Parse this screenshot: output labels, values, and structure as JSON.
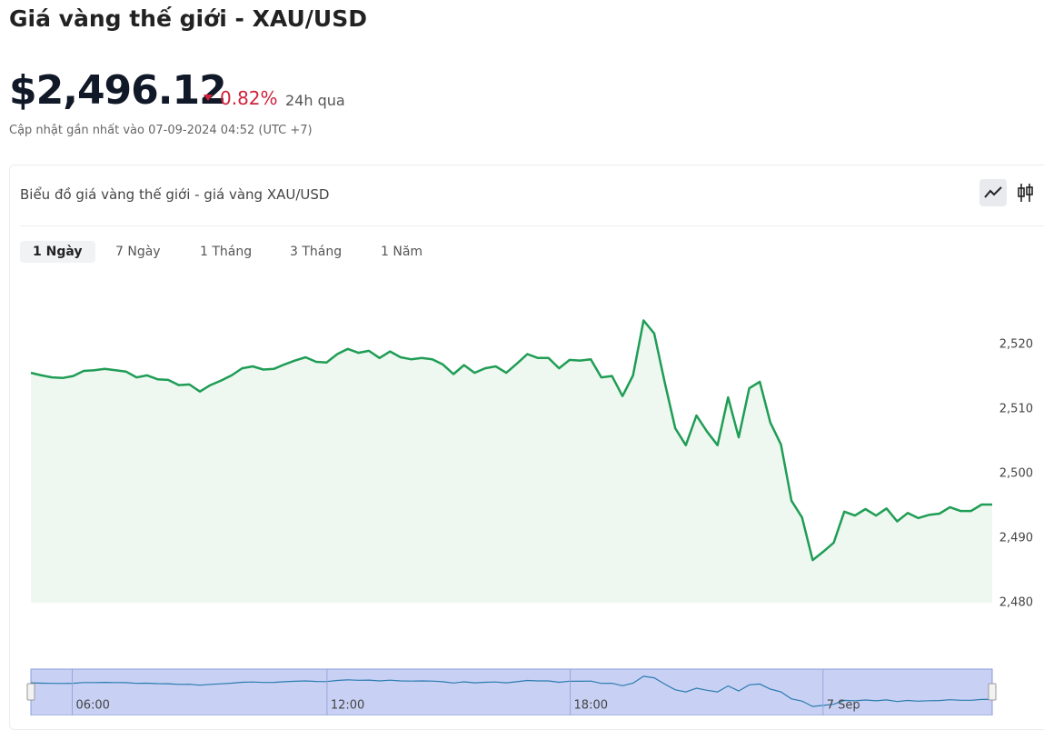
{
  "header": {
    "title": "Giá vàng thế giới - XAU/USD",
    "price": "$2,496.12",
    "change": "0.82%",
    "period": "24h qua",
    "updated": "Cập nhật gần nhất vào 07-09-2024 04:52 (UTC +7)"
  },
  "card": {
    "title": "Biểu đồ giá vàng thế giới - giá vàng XAU/USD",
    "tabs": [
      "1 Ngày",
      "7 Ngày",
      "1 Tháng",
      "3 Tháng",
      "1 Năm"
    ]
  },
  "chart_data": {
    "type": "line",
    "color": "#1f9d55",
    "fill": "#eef8f0",
    "y_axis": "right",
    "values": [
      2515.6,
      2515.2,
      2514.9,
      2514.8,
      2515.1,
      2515.9,
      2516.0,
      2516.2,
      2516.0,
      2515.8,
      2514.9,
      2515.2,
      2514.6,
      2514.5,
      2513.7,
      2513.8,
      2512.7,
      2513.7,
      2514.4,
      2515.2,
      2516.3,
      2516.6,
      2516.1,
      2516.2,
      2516.9,
      2517.5,
      2518.0,
      2517.3,
      2517.2,
      2518.5,
      2519.3,
      2518.7,
      2519.0,
      2517.9,
      2518.9,
      2518.0,
      2517.7,
      2517.9,
      2517.7,
      2516.9,
      2515.4,
      2516.8,
      2515.6,
      2516.3,
      2516.6,
      2515.6,
      2517.0,
      2518.5,
      2517.9,
      2517.9,
      2516.3,
      2517.6,
      2517.5,
      2517.7,
      2514.9,
      2515.1,
      2512.0,
      2515.2,
      2523.7,
      2521.7,
      2514.1,
      2507.0,
      2504.4,
      2509.0,
      2506.5,
      2504.4,
      2511.8,
      2505.6,
      2513.2,
      2514.2,
      2507.9,
      2504.5,
      2495.8,
      2493.2,
      2486.6,
      2487.9,
      2489.3,
      2494.1,
      2493.5,
      2494.5,
      2493.5,
      2494.6,
      2492.6,
      2493.9,
      2493.1,
      2493.6,
      2493.8,
      2494.8,
      2494.2,
      2494.2,
      2495.2,
      2495.2
    ],
    "ylim": [
      2480,
      2528
    ],
    "yticks": [
      {
        "value": 2480,
        "label": "2,480"
      },
      {
        "value": 2490,
        "label": "2,490"
      },
      {
        "value": 2500,
        "label": "2,500"
      },
      {
        "value": 2510,
        "label": "2,510"
      },
      {
        "value": 2520,
        "label": "2,520"
      }
    ],
    "navigator": {
      "labels": [
        "06:00",
        "12:00",
        "18:00",
        "7 Sep"
      ],
      "color": "#2b7bb0",
      "fill": "#c8d1f4"
    }
  }
}
